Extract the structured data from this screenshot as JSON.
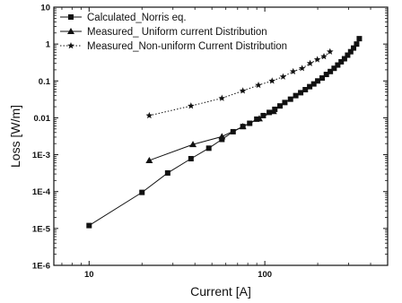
{
  "chart_data": {
    "type": "line",
    "xlabel": "Current [A]",
    "ylabel": "Loss [W/m]",
    "xscale": "log",
    "yscale": "log",
    "xlim": [
      6.3,
      500
    ],
    "ylim": [
      1e-06,
      10
    ],
    "x_ticks": [
      {
        "value": 10,
        "label": "10"
      },
      {
        "value": 100,
        "label": "100"
      }
    ],
    "y_ticks": [
      {
        "value": 10,
        "label": "10"
      },
      {
        "value": 1,
        "label": "1"
      },
      {
        "value": 0.1,
        "label": "0.1"
      },
      {
        "value": 0.01,
        "label": "0.01"
      },
      {
        "value": 0.001,
        "label": "1E-3"
      },
      {
        "value": 0.0001,
        "label": "1E-4"
      },
      {
        "value": 1e-05,
        "label": "1E-5"
      },
      {
        "value": 1e-06,
        "label": "1E-6"
      }
    ],
    "grid": false,
    "legend_position": "top-left",
    "series": [
      {
        "name": "Calculated_Norris eq.",
        "marker": "square",
        "line": "solid",
        "color": "#111111",
        "x": [
          10,
          20,
          28,
          38,
          48,
          57,
          66,
          75,
          82,
          90,
          98,
          106,
          114,
          122,
          130,
          140,
          150,
          160,
          170,
          180,
          190,
          200,
          212,
          224,
          236,
          248,
          260,
          272,
          284,
          296,
          308,
          320,
          333,
          345
        ],
        "y": [
          1.2e-05,
          9.5e-05,
          0.00032,
          0.00078,
          0.0015,
          0.0026,
          0.0042,
          0.0058,
          0.0071,
          0.0092,
          0.0115,
          0.014,
          0.017,
          0.021,
          0.026,
          0.032,
          0.04,
          0.048,
          0.058,
          0.07,
          0.083,
          0.1,
          0.12,
          0.15,
          0.18,
          0.22,
          0.27,
          0.33,
          0.4,
          0.5,
          0.62,
          0.78,
          1.0,
          1.4
        ]
      },
      {
        "name": "Measured_ Uniform current Distribution",
        "marker": "triangle",
        "line": "solid",
        "color": "#111111",
        "x": [
          22,
          39,
          57,
          75,
          93,
          112
        ],
        "y": [
          0.0007,
          0.0019,
          0.0031,
          0.0058,
          0.0095,
          0.0149
        ]
      },
      {
        "name": "Measured_Non-uniform Current Distribution",
        "marker": "star",
        "line": "dotted",
        "color": "#111111",
        "x": [
          22,
          38,
          57,
          75,
          92,
          110,
          127,
          145,
          163,
          181,
          199,
          217,
          235
        ],
        "y": [
          0.0115,
          0.021,
          0.034,
          0.054,
          0.077,
          0.1,
          0.13,
          0.18,
          0.22,
          0.3,
          0.38,
          0.46,
          0.62
        ]
      }
    ]
  }
}
